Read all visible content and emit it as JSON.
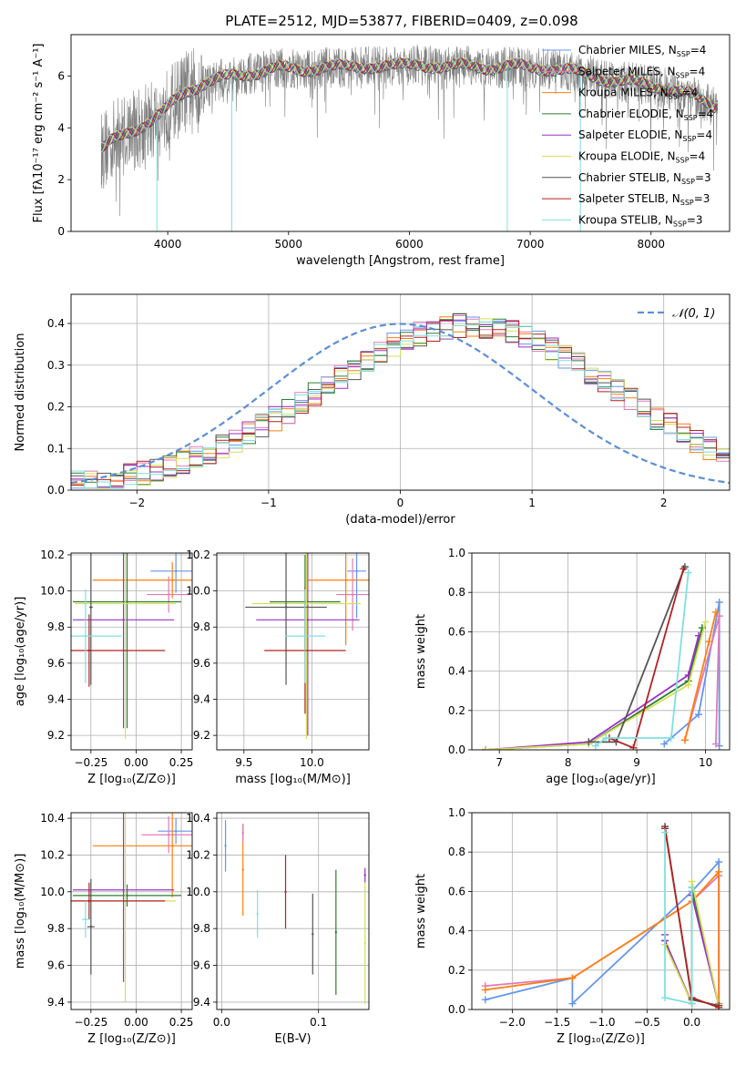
{
  "colors": {
    "Chabrier MILES": "#6495ED",
    "Salpeter MILES": "#E07BB8",
    "Kroupa MILES": "#FF7F0E",
    "Chabrier ELODIE": "#2E7D32",
    "Salpeter ELODIE": "#9B30C8",
    "Kroupa ELODIE": "#D4E157",
    "Chabrier STELIB": "#555555",
    "Salpeter STELIB": "#B22222",
    "Kroupa STELIB": "#7FE0E0",
    "normal": "#5B8FD6"
  },
  "chart_data": [
    {
      "id": "spectrum",
      "type": "line",
      "title": "PLATE=2512, MJD=53877, FIBERID=0409, z=0.098",
      "xlabel": "wavelength [Angstrom, rest frame]",
      "ylabel": "Flux [fλ10⁻¹⁷ erg cm⁻² s⁻¹ A⁻¹]",
      "xlim": [
        3200,
        8650
      ],
      "ylim": [
        0,
        7.6
      ],
      "xticks": [
        "4000",
        "5000",
        "6000",
        "7000",
        "8000"
      ],
      "yticks": [
        "0",
        "2",
        "4",
        "6"
      ],
      "legend_position": "top-right",
      "legend": [
        "Chabrier MILES, N_SSP=4",
        "Salpeter MILES, N_SSP=4",
        "Kroupa MILES, N_SSP=4",
        "Chabrier ELODIE, N_SSP=4",
        "Salpeter ELODIE, N_SSP=4",
        "Kroupa ELODIE, N_SSP=4",
        "Chabrier STELIB, N_SSP=3",
        "Salpeter STELIB, N_SSP=3",
        "Kroupa STELIB, N_SSP=3"
      ],
      "model_x": [
        3460,
        3550,
        3650,
        3750,
        3850,
        3950,
        4050,
        4150,
        4300,
        4500,
        4700,
        4900,
        5100,
        5300,
        5500,
        5700,
        5900,
        6100,
        6300,
        6500,
        6700,
        6900,
        7100,
        7300,
        7500,
        7700,
        7900,
        8100,
        8300,
        8500
      ],
      "model_y": [
        3.1,
        3.5,
        3.8,
        4.0,
        4.2,
        4.5,
        5.0,
        5.4,
        5.7,
        5.95,
        6.1,
        6.3,
        6.2,
        6.35,
        6.3,
        6.4,
        6.35,
        6.45,
        6.3,
        6.4,
        6.3,
        6.35,
        6.3,
        6.2,
        6.0,
        5.8,
        5.7,
        5.55,
        5.3,
        4.85
      ],
      "data_range": [
        3450,
        8550
      ],
      "spikes": [
        {
          "x": 3910,
          "y": 0
        },
        {
          "x": 4530,
          "y": 0
        },
        {
          "x": 6810,
          "y": 0
        },
        {
          "x": 7415,
          "y": 0
        }
      ]
    },
    {
      "id": "residuals",
      "type": "line",
      "xlabel": "(data-model)/error",
      "ylabel": "Normed distribution",
      "xlim": [
        -2.5,
        2.5
      ],
      "ylim": [
        0,
        0.47
      ],
      "xticks": [
        "−2",
        "−1",
        "0",
        "1",
        "2"
      ],
      "yticks": [
        "0.0",
        "0.1",
        "0.2",
        "0.3",
        "0.4"
      ],
      "legend": [
        "𝒩(0, 1)"
      ],
      "legend_position": "top-right",
      "bin_width": 0.1,
      "bin_start": -2.5,
      "envelope": [
        0.02,
        0.022,
        0.025,
        0.03,
        0.034,
        0.04,
        0.047,
        0.056,
        0.066,
        0.077,
        0.09,
        0.104,
        0.12,
        0.136,
        0.154,
        0.172,
        0.19,
        0.21,
        0.23,
        0.25,
        0.27,
        0.29,
        0.31,
        0.33,
        0.35,
        0.365,
        0.375,
        0.385,
        0.39,
        0.395,
        0.395,
        0.39,
        0.385,
        0.378,
        0.37,
        0.355,
        0.34,
        0.32,
        0.3,
        0.28,
        0.26,
        0.24,
        0.218,
        0.196,
        0.175,
        0.155,
        0.136,
        0.118,
        0.1,
        0.085
      ],
      "tail_shape": [
        0.08,
        0.072,
        0.066,
        0.06,
        0.055,
        0.05,
        0.046,
        0.042,
        0.04,
        0.038
      ]
    },
    {
      "id": "age-vs-Z",
      "type": "scatter",
      "xlabel": "Z [log₁₀(Z/Z⊙)]",
      "ylabel": "age  [log₁₀(age/yr)]",
      "xlim": [
        -0.36,
        0.31
      ],
      "ylim": [
        9.12,
        10.21
      ],
      "xticks": [
        "−0.25",
        "0.00",
        "0.25"
      ],
      "yticks": [
        "9.2",
        "9.4",
        "9.6",
        "9.8",
        "10.0",
        "10.2"
      ],
      "points": [
        {
          "model": "Chabrier MILES",
          "x": 0.22,
          "xerr": 0.14,
          "y": 10.11,
          "yerr": 0.12
        },
        {
          "model": "Salpeter MILES",
          "x": 0.18,
          "xerr": 0.12,
          "y": 9.98,
          "yerr": 0.1
        },
        {
          "model": "Kroupa MILES",
          "x": 0.2,
          "xerr": 0.44,
          "y": 10.06,
          "yerr": 0.1
        },
        {
          "model": "Chabrier ELODIE",
          "x": -0.05,
          "xerr": 0.3,
          "y": 9.94,
          "yerr": 0.7
        },
        {
          "model": "Salpeter ELODIE",
          "x": -0.07,
          "xerr": 0.28,
          "y": 9.84,
          "yerr": 0.6
        },
        {
          "model": "Kroupa ELODIE",
          "x": -0.06,
          "xerr": 0.28,
          "y": 9.93,
          "yerr": 0.75
        },
        {
          "model": "Chabrier STELIB",
          "x": -0.25,
          "xerr": 0.01,
          "y": 9.91,
          "yerr": 0.43
        },
        {
          "model": "Salpeter STELIB",
          "x": -0.26,
          "xerr": 0.42,
          "y": 9.67,
          "yerr": 0.2
        },
        {
          "model": "Kroupa STELIB",
          "x": -0.28,
          "xerr": 0.2,
          "y": 9.75,
          "yerr": 0.26
        }
      ]
    },
    {
      "id": "age-vs-mass",
      "type": "scatter",
      "xlabel": "mass [log₁₀(M/M⊙)]",
      "ylabel": "",
      "xlim": [
        9.3,
        10.42
      ],
      "ylim": [
        9.12,
        10.21
      ],
      "xticks": [
        "9.5",
        "10.0"
      ],
      "yticks": [
        "9.2",
        "9.4",
        "9.6",
        "9.8",
        "10.0",
        "10.2"
      ],
      "points": [
        {
          "model": "Chabrier MILES",
          "x": 10.33,
          "xerr": 0.07,
          "y": 10.11,
          "yerr": 0.26
        },
        {
          "model": "Salpeter MILES",
          "x": 10.3,
          "xerr": 0.12,
          "y": 9.98,
          "yerr": 0.2
        },
        {
          "model": "Kroupa MILES",
          "x": 10.25,
          "xerr": 0.28,
          "y": 10.06,
          "yerr": 0.36
        },
        {
          "model": "Chabrier ELODIE",
          "x": 9.95,
          "xerr": 0.26,
          "y": 9.94,
          "yerr": 0.26
        },
        {
          "model": "Salpeter ELODIE",
          "x": 9.97,
          "xerr": 0.38,
          "y": 9.84,
          "yerr": 0.64
        },
        {
          "model": "Kroupa ELODIE",
          "x": 9.96,
          "xerr": 0.4,
          "y": 9.93,
          "yerr": 0.75
        },
        {
          "model": "Chabrier STELIB",
          "x": 9.81,
          "xerr": 0.3,
          "y": 9.91,
          "yerr": 0.43
        },
        {
          "model": "Salpeter STELIB",
          "x": 9.95,
          "xerr": 0.3,
          "y": 9.67,
          "yerr": 0.35
        },
        {
          "model": "Kroupa STELIB",
          "x": 9.95,
          "xerr": 0.15,
          "y": 9.75,
          "yerr": 0.26
        }
      ]
    },
    {
      "id": "mass-weight-vs-age",
      "type": "line",
      "xlabel": "age  [log₁₀(age/yr)]",
      "ylabel": "mass weight",
      "xlim": [
        6.6,
        10.35
      ],
      "ylim": [
        0,
        1.0
      ],
      "xticks": [
        "7",
        "8",
        "9",
        "10"
      ],
      "yticks": [
        "0.0",
        "0.2",
        "0.4",
        "0.6",
        "0.8",
        "1.0"
      ],
      "series": [
        {
          "model": "Chabrier MILES",
          "x": [
            9.4,
            9.9,
            10.2,
            10.2
          ],
          "y": [
            0.03,
            0.18,
            0.75,
            0.02
          ]
        },
        {
          "model": "Salpeter MILES",
          "x": [
            9.7,
            10.2,
            10.15
          ],
          "y": [
            0.05,
            0.68,
            0.03
          ]
        },
        {
          "model": "Kroupa MILES",
          "x": [
            9.7,
            10.05,
            10.15
          ],
          "y": [
            0.05,
            0.55,
            0.7
          ]
        },
        {
          "model": "Chabrier ELODIE",
          "x": [
            6.8,
            8.3,
            9.75,
            9.95
          ],
          "y": [
            0.0,
            0.03,
            0.35,
            0.62
          ]
        },
        {
          "model": "Salpeter ELODIE",
          "x": [
            6.8,
            8.3,
            9.75,
            9.9
          ],
          "y": [
            0.0,
            0.04,
            0.38,
            0.58
          ]
        },
        {
          "model": "Kroupa ELODIE",
          "x": [
            6.8,
            8.3,
            9.75,
            10.0
          ],
          "y": [
            0.0,
            0.03,
            0.33,
            0.65
          ]
        },
        {
          "model": "Chabrier STELIB",
          "x": [
            8.3,
            8.7,
            9.7
          ],
          "y": [
            0.04,
            0.04,
            0.93
          ]
        },
        {
          "model": "Salpeter STELIB",
          "x": [
            8.6,
            8.95,
            9.68
          ],
          "y": [
            0.06,
            0.01,
            0.92
          ]
        },
        {
          "model": "Kroupa STELIB",
          "x": [
            8.4,
            8.55,
            9.5,
            9.75
          ],
          "y": [
            0.02,
            0.06,
            0.06,
            0.9
          ]
        }
      ]
    },
    {
      "id": "mass-vs-Z",
      "type": "scatter",
      "xlabel": "Z [log₁₀(Z/Z⊙)]",
      "ylabel": "mass [log₁₀(M/M⊙)]",
      "xlim": [
        -0.36,
        0.31
      ],
      "ylim": [
        9.36,
        10.43
      ],
      "xticks": [
        "−0.25",
        "0.00",
        "0.25"
      ],
      "yticks": [
        "9.4",
        "9.6",
        "9.8",
        "10.0",
        "10.2",
        "10.4"
      ],
      "points": [
        {
          "model": "Chabrier MILES",
          "x": 0.22,
          "xerr": 0.1,
          "y": 10.33,
          "yerr": 0.07
        },
        {
          "model": "Salpeter MILES",
          "x": 0.18,
          "xerr": 0.15,
          "y": 10.31,
          "yerr": 0.1
        },
        {
          "model": "Kroupa MILES",
          "x": 0.2,
          "xerr": 0.44,
          "y": 10.25,
          "yerr": 0.28
        },
        {
          "model": "Chabrier ELODIE",
          "x": -0.05,
          "xerr": 0.3,
          "y": 9.98,
          "yerr": 0.06
        },
        {
          "model": "Salpeter ELODIE",
          "x": -0.07,
          "xerr": 0.28,
          "y": 10.01,
          "yerr": 0.5
        },
        {
          "model": "Kroupa ELODIE",
          "x": -0.06,
          "xerr": 0.28,
          "y": 9.95,
          "yerr": 0.55
        },
        {
          "model": "Chabrier STELIB",
          "x": -0.25,
          "xerr": 0.02,
          "y": 9.81,
          "yerr": 0.26
        },
        {
          "model": "Salpeter STELIB",
          "x": -0.26,
          "xerr": 0.42,
          "y": 9.95,
          "yerr": 0.1
        },
        {
          "model": "Kroupa STELIB",
          "x": -0.28,
          "xerr": 0.02,
          "y": 9.85,
          "yerr": 0.1
        }
      ]
    },
    {
      "id": "mass-vs-EBV",
      "type": "scatter",
      "xlabel": "E(B-V)",
      "ylabel": "",
      "xlim": [
        -0.005,
        0.152
      ],
      "ylim": [
        9.36,
        10.43
      ],
      "xticks": [
        "0.0",
        "0.1"
      ],
      "yticks": [
        "9.4",
        "9.6",
        "9.8",
        "10.0",
        "10.2",
        "10.4"
      ],
      "points": [
        {
          "model": "Chabrier MILES",
          "x": 0.004,
          "xerr": 0,
          "y": 10.25,
          "yerr": 0.14
        },
        {
          "model": "Kroupa MILES",
          "x": 0.022,
          "xerr": 0,
          "y": 10.12,
          "yerr": 0.25
        },
        {
          "model": "Salpeter MILES",
          "x": 0.022,
          "xerr": 0,
          "y": 10.32,
          "yerr": 0.05
        },
        {
          "model": "Kroupa STELIB",
          "x": 0.037,
          "xerr": 0,
          "y": 9.88,
          "yerr": 0.13
        },
        {
          "model": "Salpeter STELIB",
          "x": 0.066,
          "xerr": 0,
          "y": 10.0,
          "yerr": 0.2
        },
        {
          "model": "Chabrier STELIB",
          "x": 0.094,
          "xerr": 0,
          "y": 9.77,
          "yerr": 0.22
        },
        {
          "model": "Chabrier ELODIE",
          "x": 0.118,
          "xerr": 0,
          "y": 9.78,
          "yerr": 0.34
        },
        {
          "model": "Salpeter ELODIE",
          "x": 0.148,
          "xerr": 0,
          "y": 10.09,
          "yerr": 0.04
        },
        {
          "model": "Kroupa ELODIE",
          "x": 0.148,
          "xerr": 0,
          "y": 9.72,
          "yerr": 0.33
        }
      ]
    },
    {
      "id": "mass-weight-vs-Z",
      "type": "line",
      "xlabel": "Z [log₁₀(Z/Z⊙)]",
      "ylabel": "mass weight",
      "xlim": [
        -2.45,
        0.42
      ],
      "ylim": [
        0,
        1.0
      ],
      "xticks": [
        "−2.0",
        "−1.5",
        "−1.0",
        "−0.5",
        "0.0"
      ],
      "yticks": [
        "0.0",
        "0.2",
        "0.4",
        "0.6",
        "0.8",
        "1.0"
      ],
      "series": [
        {
          "model": "Chabrier MILES",
          "x": [
            -2.3,
            -1.33,
            -1.33,
            0.0,
            0.3,
            0.3
          ],
          "y": [
            0.05,
            0.16,
            0.03,
            0.6,
            0.75,
            0.02
          ]
        },
        {
          "model": "Salpeter MILES",
          "x": [
            -2.3,
            -1.33,
            0.0,
            0.3,
            0.3
          ],
          "y": [
            0.12,
            0.16,
            0.55,
            0.68,
            0.03
          ]
        },
        {
          "model": "Kroupa MILES",
          "x": [
            -2.3,
            -1.33,
            0.0,
            0.3,
            0.3
          ],
          "y": [
            0.1,
            0.16,
            0.55,
            0.7,
            0.03
          ]
        },
        {
          "model": "Chabrier ELODIE",
          "x": [
            -0.3,
            0.0,
            0.0,
            0.3
          ],
          "y": [
            0.35,
            0.03,
            0.62,
            0.02
          ]
        },
        {
          "model": "Salpeter ELODIE",
          "x": [
            -0.3,
            -0.3,
            0.0,
            0.0,
            0.3
          ],
          "y": [
            0.38,
            0.35,
            0.03,
            0.58,
            0.02
          ]
        },
        {
          "model": "Kroupa ELODIE",
          "x": [
            -0.3,
            0.0,
            0.0,
            0.3
          ],
          "y": [
            0.33,
            0.03,
            0.65,
            0.02
          ]
        },
        {
          "model": "Chabrier STELIB",
          "x": [
            -0.3,
            0.0,
            0.3
          ],
          "y": [
            0.93,
            0.05,
            0.02
          ]
        },
        {
          "model": "Salpeter STELIB",
          "x": [
            -0.3,
            0.0,
            0.3
          ],
          "y": [
            0.92,
            0.06,
            0.01
          ]
        },
        {
          "model": "Kroupa STELIB",
          "x": [
            -0.3,
            -0.3,
            0.0,
            0.0
          ],
          "y": [
            0.9,
            0.06,
            0.03,
            0.62
          ]
        }
      ]
    }
  ]
}
